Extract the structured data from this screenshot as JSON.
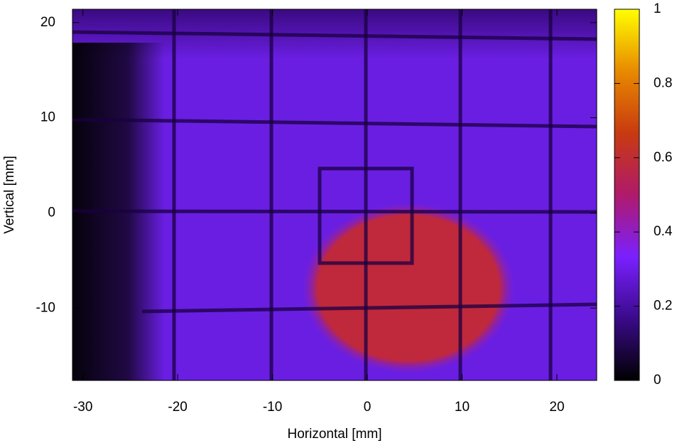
{
  "chart_data": {
    "type": "heatmap",
    "xlabel": "Horizontal [mm]",
    "ylabel": "Vertical [mm]",
    "xlim": [
      -31.1,
      24.2
    ],
    "ylim": [
      -17.6,
      21.4
    ],
    "xticks": [
      -30,
      -20,
      -10,
      0,
      10,
      20
    ],
    "yticks": [
      -10,
      0,
      10,
      20
    ],
    "colorbar": {
      "lim": [
        0,
        1
      ],
      "ticks": [
        0,
        0.2,
        0.4,
        0.6,
        0.8,
        1
      ],
      "colormap": [
        "#000000",
        "#3a0a8a",
        "#7a20ff",
        "#b01a6a",
        "#c83a10",
        "#e88a00",
        "#ffff00"
      ]
    }
  }
}
